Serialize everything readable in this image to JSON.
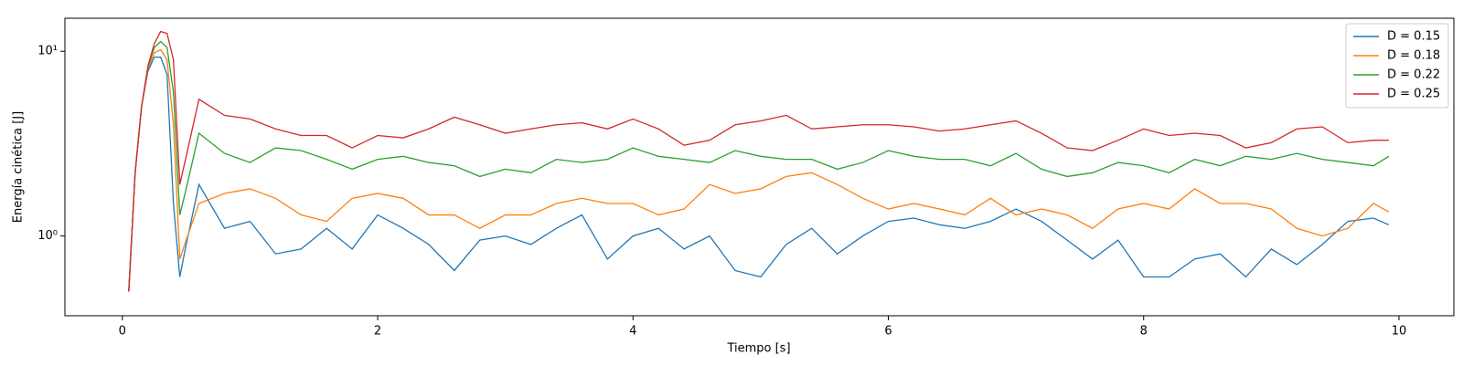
{
  "chart_data": {
    "type": "line",
    "xlabel": "Tiempo [s]",
    "ylabel": "Energía cinética [J]",
    "x": [
      0.05,
      0.1,
      0.15,
      0.2,
      0.25,
      0.3,
      0.35,
      0.4,
      0.45,
      0.5,
      0.6,
      0.8,
      1.0,
      1.2,
      1.4,
      1.6,
      1.8,
      2.0,
      2.2,
      2.4,
      2.6,
      2.8,
      3.0,
      3.2,
      3.4,
      3.6,
      3.8,
      4.0,
      4.2,
      4.4,
      4.6,
      4.8,
      5.0,
      5.2,
      5.4,
      5.6,
      5.8,
      6.0,
      6.2,
      6.4,
      6.6,
      6.8,
      7.0,
      7.2,
      7.4,
      7.6,
      7.8,
      8.0,
      8.2,
      8.4,
      8.6,
      8.8,
      9.0,
      9.2,
      9.4,
      9.6,
      9.8,
      9.92
    ],
    "series": [
      {
        "name": "D = 0.15",
        "color": "#1f77b4",
        "values": [
          0.5,
          2.2,
          5,
          7.8,
          9.3,
          9.3,
          7.5,
          1.5,
          0.6,
          0.9,
          1.9,
          1.1,
          1.2,
          0.8,
          0.85,
          1.1,
          0.85,
          1.3,
          1.1,
          0.9,
          0.65,
          0.95,
          1.0,
          0.9,
          1.1,
          1.3,
          0.75,
          1.0,
          1.1,
          0.85,
          1.0,
          0.65,
          0.6,
          0.9,
          1.1,
          0.8,
          1.0,
          1.2,
          1.25,
          1.15,
          1.1,
          1.2,
          1.4,
          1.2,
          0.95,
          0.75,
          0.95,
          0.6,
          0.6,
          0.75,
          0.8,
          0.6,
          0.85,
          0.7,
          0.9,
          1.2,
          1.25,
          1.15
        ]
      },
      {
        "name": "D = 0.18",
        "color": "#ff7f0e",
        "values": [
          0.5,
          2.2,
          5,
          8,
          9.8,
          10.2,
          9,
          4,
          0.75,
          0.95,
          1.5,
          1.7,
          1.8,
          1.6,
          1.3,
          1.2,
          1.6,
          1.7,
          1.6,
          1.3,
          1.3,
          1.1,
          1.3,
          1.3,
          1.5,
          1.6,
          1.5,
          1.5,
          1.3,
          1.4,
          1.9,
          1.7,
          1.8,
          2.1,
          2.2,
          1.9,
          1.6,
          1.4,
          1.5,
          1.4,
          1.3,
          1.6,
          1.3,
          1.4,
          1.3,
          1.1,
          1.4,
          1.5,
          1.4,
          1.8,
          1.5,
          1.5,
          1.4,
          1.1,
          1.0,
          1.1,
          1.5,
          1.35
        ]
      },
      {
        "name": "D = 0.22",
        "color": "#2ca02c",
        "values": [
          0.5,
          2.2,
          5,
          8.2,
          10.5,
          11.3,
          10.5,
          6,
          1.3,
          1.8,
          3.6,
          2.8,
          2.5,
          3.0,
          2.9,
          2.6,
          2.3,
          2.6,
          2.7,
          2.5,
          2.4,
          2.1,
          2.3,
          2.2,
          2.6,
          2.5,
          2.6,
          3.0,
          2.7,
          2.6,
          2.5,
          2.9,
          2.7,
          2.6,
          2.6,
          2.3,
          2.5,
          2.9,
          2.7,
          2.6,
          2.6,
          2.4,
          2.8,
          2.3,
          2.1,
          2.2,
          2.5,
          2.4,
          2.2,
          2.6,
          2.4,
          2.7,
          2.6,
          2.8,
          2.6,
          2.5,
          2.4,
          2.7
        ]
      },
      {
        "name": "D = 0.25",
        "color": "#d62728",
        "values": [
          0.5,
          2.2,
          5,
          8.3,
          11,
          12.8,
          12.5,
          9,
          1.9,
          2.7,
          5.5,
          4.5,
          4.3,
          3.8,
          3.5,
          3.5,
          3.0,
          3.5,
          3.4,
          3.8,
          4.4,
          4.0,
          3.6,
          3.8,
          4.0,
          4.1,
          3.8,
          4.3,
          3.8,
          3.1,
          3.3,
          4.0,
          4.2,
          4.5,
          3.8,
          3.9,
          4.0,
          4.0,
          3.9,
          3.7,
          3.8,
          4.0,
          4.2,
          3.6,
          3.0,
          2.9,
          3.3,
          3.8,
          3.5,
          3.6,
          3.5,
          3.0,
          3.2,
          3.8,
          3.9,
          3.2,
          3.3,
          3.3
        ]
      }
    ],
    "xlim": [
      -0.45,
      10.43
    ],
    "xticks": [
      0,
      2,
      4,
      6,
      8,
      10
    ],
    "ylim": [
      0.37,
      15.1
    ],
    "yticks": [
      {
        "value": 1,
        "label": "10⁰"
      },
      {
        "value": 10,
        "label": "10¹"
      }
    ],
    "yscale": "log",
    "legend": "upper right"
  }
}
